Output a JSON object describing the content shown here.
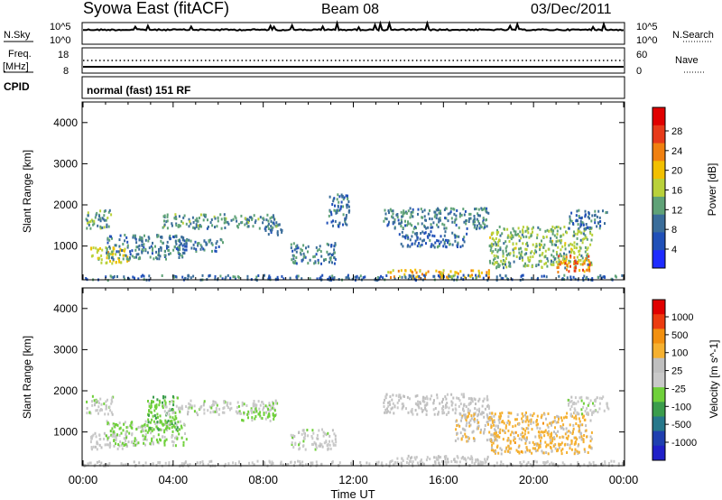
{
  "header": {
    "station": "Syowa East (fitACF)",
    "beam": "Beam 08",
    "date": "03/Dec/2011"
  },
  "noise_panel": {
    "left_label": "N.Sky",
    "right_label": "N.Search",
    "left_ticks": [
      "10^5",
      "10^0"
    ],
    "right_ticks": [
      "10^5",
      "10^0"
    ]
  },
  "freq_panel": {
    "left_label_line1": "Freq.",
    "left_label_line2": "[MHz]",
    "right_label": "Nave",
    "left_ticks": [
      "18",
      "8"
    ],
    "right_ticks": [
      "60",
      "0"
    ]
  },
  "cpid": {
    "label": "CPID",
    "text": "normal (fast) 151 RF"
  },
  "x_axis": {
    "label": "Time UT",
    "ticks": [
      "00:00",
      "04:00",
      "08:00",
      "12:00",
      "16:00",
      "20:00",
      "00:00"
    ]
  },
  "colors": {
    "power": [
      "#1e2bff",
      "#2050b8",
      "#3a6d9a",
      "#5fa277",
      "#b9d13a",
      "#f2c000",
      "#f08010",
      "#e73a1a",
      "#e00000"
    ],
    "velocity": [
      "#e00000",
      "#ec3b10",
      "#f29010",
      "#f5b030",
      "#bfbfbf",
      "#c9c9c9",
      "#6fd03a",
      "#3b9d4c",
      "#27788b",
      "#1f3fb0",
      "#2020c8"
    ]
  },
  "chart_data": [
    {
      "type": "heatmap",
      "title": "Power",
      "ylabel": "Slant Range [km]",
      "xlabel": "",
      "x_range_hours": [
        0,
        24
      ],
      "ylim": [
        180,
        4500
      ],
      "y_ticks": [
        1000,
        2000,
        3000,
        4000
      ],
      "colorbar": {
        "label": "Power [dB]",
        "ticks": [
          "4",
          "8",
          "12",
          "16",
          "20",
          "24",
          "28"
        ],
        "range": [
          0,
          32
        ]
      },
      "echo_regions": [
        {
          "t": [
            0.1,
            1.3
          ],
          "r": [
            1450,
            1900
          ],
          "v": 12
        },
        {
          "t": [
            0.3,
            2.0
          ],
          "r": [
            600,
            1000
          ],
          "v": 18
        },
        {
          "t": [
            1.0,
            4.6
          ],
          "r": [
            700,
            1300
          ],
          "v": 10
        },
        {
          "t": [
            3.5,
            8.7
          ],
          "r": [
            1450,
            1800
          ],
          "v": 11
        },
        {
          "t": [
            4.0,
            6.2
          ],
          "r": [
            900,
            1200
          ],
          "v": 9
        },
        {
          "t": [
            8.0,
            8.8
          ],
          "r": [
            1300,
            1600
          ],
          "v": 8
        },
        {
          "t": [
            9.2,
            11.2
          ],
          "r": [
            600,
            1100
          ],
          "v": 10
        },
        {
          "t": [
            10.8,
            11.8
          ],
          "r": [
            1500,
            2300
          ],
          "v": 8
        },
        {
          "t": [
            13.3,
            18.0
          ],
          "r": [
            1450,
            1950
          ],
          "v": 10
        },
        {
          "t": [
            14.0,
            17.0
          ],
          "r": [
            1000,
            1400
          ],
          "v": 8
        },
        {
          "t": [
            13.5,
            18.0
          ],
          "r": [
            250,
            450
          ],
          "v": 20
        },
        {
          "t": [
            18.0,
            22.6
          ],
          "r": [
            500,
            1500
          ],
          "v": 14
        },
        {
          "t": [
            21.0,
            22.5
          ],
          "r": [
            400,
            800
          ],
          "v": 24
        },
        {
          "t": [
            21.5,
            23.3
          ],
          "r": [
            1450,
            1900
          ],
          "v": 9
        },
        {
          "t": [
            0.0,
            24.0
          ],
          "r": [
            200,
            320
          ],
          "v": 8
        }
      ]
    },
    {
      "type": "heatmap",
      "title": "Velocity",
      "ylabel": "Slant Range [km]",
      "xlabel": "Time UT",
      "x_range_hours": [
        0,
        24
      ],
      "ylim": [
        180,
        4500
      ],
      "y_ticks": [
        1000,
        2000,
        3000,
        4000
      ],
      "colorbar": {
        "label": "Velocity [m s^-1]",
        "ticks": [
          "1000",
          "500",
          "100",
          "25",
          "-25",
          "-100",
          "-500",
          "-1000"
        ],
        "range": [
          -1200,
          1200
        ]
      },
      "echo_regions": [
        {
          "t": [
            0.1,
            1.3
          ],
          "r": [
            1450,
            1900
          ],
          "v": 0
        },
        {
          "t": [
            0.3,
            2.0
          ],
          "r": [
            600,
            1000
          ],
          "v": 50
        },
        {
          "t": [
            1.0,
            4.6
          ],
          "r": [
            700,
            1300
          ],
          "v": -120
        },
        {
          "t": [
            2.8,
            4.2
          ],
          "r": [
            1000,
            1900
          ],
          "v": -250
        },
        {
          "t": [
            3.5,
            8.7
          ],
          "r": [
            1450,
            1800
          ],
          "v": 0
        },
        {
          "t": [
            7.0,
            8.5
          ],
          "r": [
            1300,
            1600
          ],
          "v": -200
        },
        {
          "t": [
            9.2,
            11.2
          ],
          "r": [
            600,
            1100
          ],
          "v": 0
        },
        {
          "t": [
            13.3,
            18.0
          ],
          "r": [
            1450,
            1950
          ],
          "v": 120
        },
        {
          "t": [
            16.5,
            18.5
          ],
          "r": [
            800,
            1500
          ],
          "v": 300
        },
        {
          "t": [
            18.0,
            22.6
          ],
          "r": [
            500,
            1500
          ],
          "v": 400
        },
        {
          "t": [
            13.5,
            18.0
          ],
          "r": [
            250,
            450
          ],
          "v": 60
        },
        {
          "t": [
            21.5,
            23.3
          ],
          "r": [
            1450,
            1900
          ],
          "v": 0
        },
        {
          "t": [
            0.0,
            24.0
          ],
          "r": [
            200,
            320
          ],
          "v": 60
        }
      ]
    }
  ]
}
